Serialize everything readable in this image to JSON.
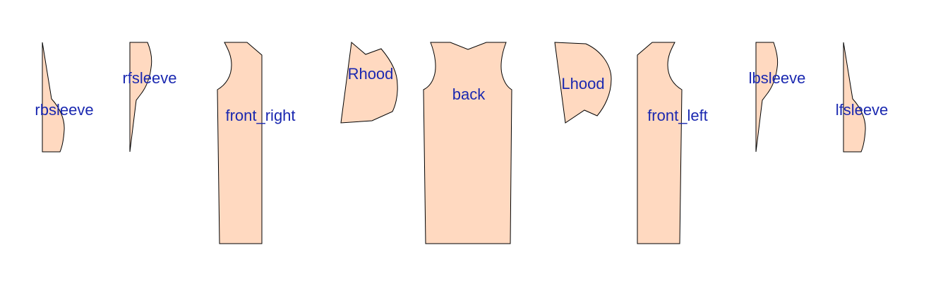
{
  "colors": {
    "piece_fill": "#ffd9c0",
    "piece_outline": "#000000",
    "label_text": "#1a28b0",
    "background": "#ffffff"
  },
  "pieces": [
    {
      "id": "rbsleeve",
      "label": "rbsleeve"
    },
    {
      "id": "rfsleeve",
      "label": "rfsleeve"
    },
    {
      "id": "front_right",
      "label": "front_right"
    },
    {
      "id": "rhood",
      "label": "Rhood"
    },
    {
      "id": "back",
      "label": "back"
    },
    {
      "id": "lhood",
      "label": "Lhood"
    },
    {
      "id": "front_left",
      "label": "front_left"
    },
    {
      "id": "lbsleeve",
      "label": "lbsleeve"
    },
    {
      "id": "lfsleeve",
      "label": "lfsleeve"
    }
  ]
}
